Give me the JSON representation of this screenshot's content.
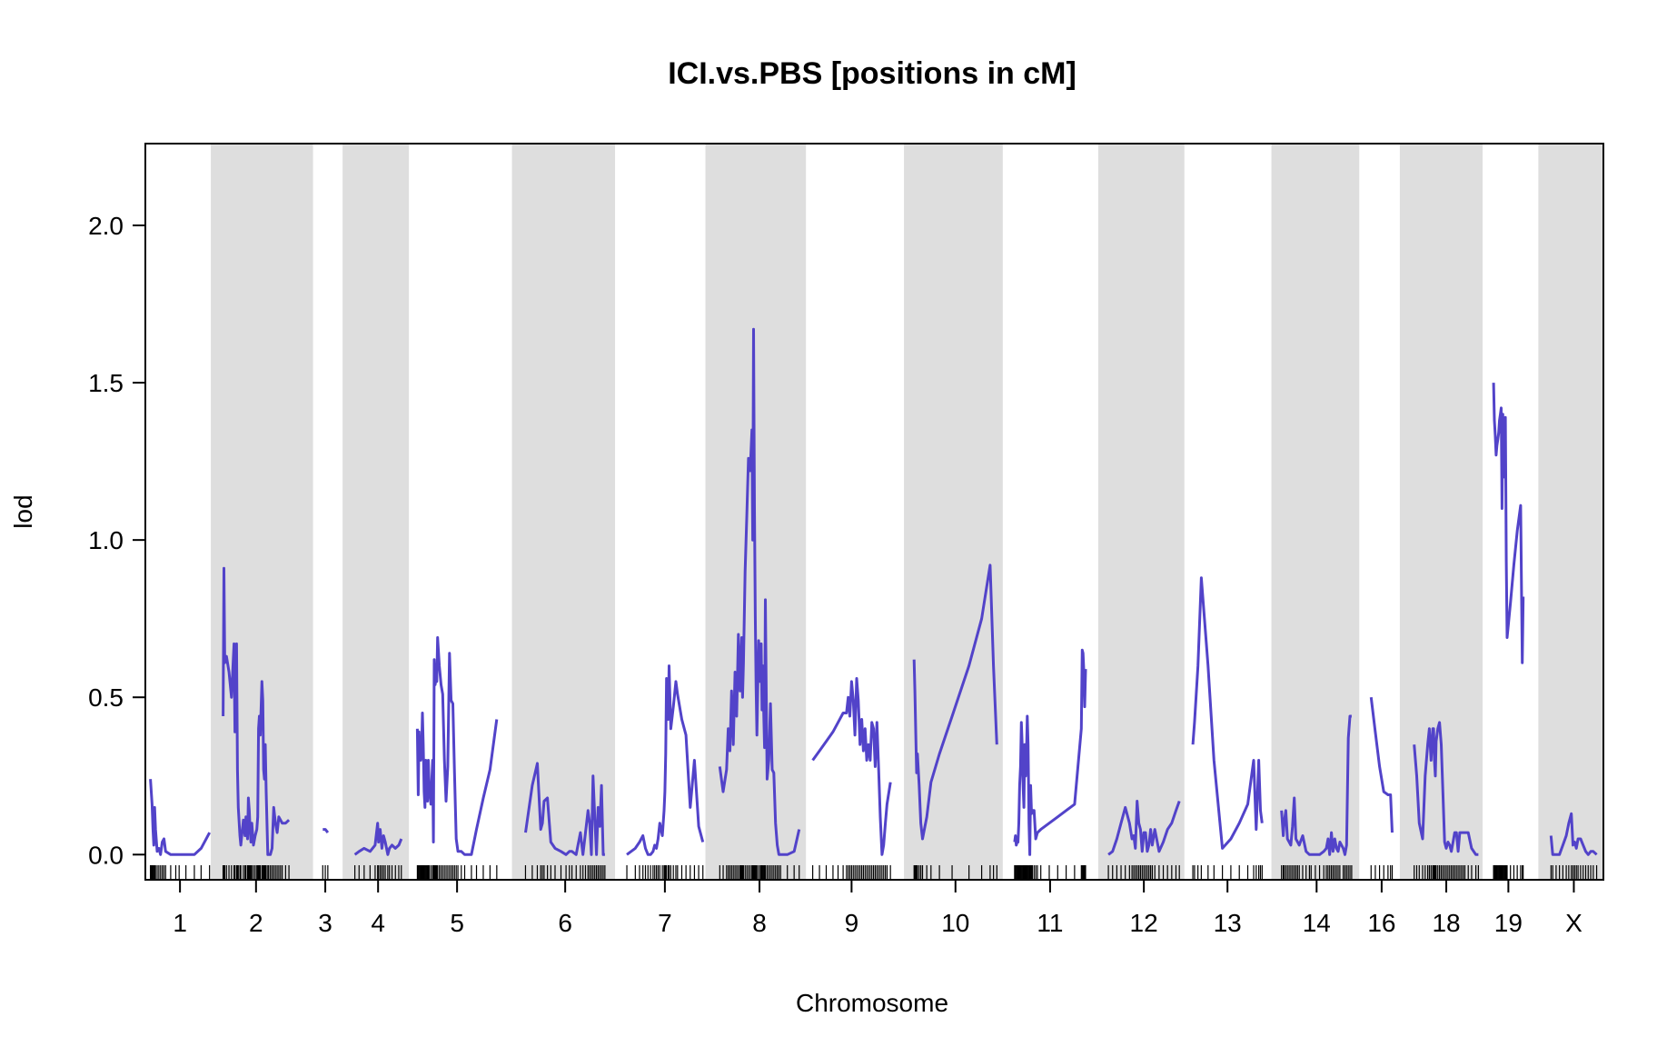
{
  "chart_data": {
    "type": "line",
    "title": "ICI.vs.PBS [positions in cM]",
    "xlabel": "Chromosome",
    "ylabel": "lod",
    "ylim": [
      -0.08,
      2.26
    ],
    "y_ticks": [
      "0.0",
      "0.5",
      "1.0",
      "1.5",
      "2.0"
    ],
    "y_tick_values": [
      0,
      0.5,
      1,
      1.5,
      2
    ],
    "line_color": "#5243c9",
    "band_color": "#dedede",
    "rug_color": "#000000",
    "grid": false,
    "legend": "none",
    "chromosomes": [
      {
        "name": "1",
        "start": 0,
        "end": 77.5,
        "shaded": false,
        "x": [
          6,
          7,
          8,
          9,
          10,
          11,
          12,
          14,
          16,
          18,
          20,
          22,
          24,
          30,
          36,
          40,
          48,
          58,
          66,
          76
        ],
        "lod": [
          0.24,
          0.2,
          0.16,
          0.08,
          0.03,
          0.15,
          0.08,
          0.01,
          0.02,
          0.0,
          0.04,
          0.05,
          0.01,
          0.0,
          0.0,
          0.0,
          0.0,
          0.0,
          0.02,
          0.07
        ]
      },
      {
        "name": "2",
        "start": 77.5,
        "end": 198.5,
        "shaded": true,
        "x": [
          92,
          93,
          94,
          96,
          99,
          102,
          105,
          106,
          108,
          109,
          110,
          112,
          113,
          116,
          118,
          119,
          121,
          122,
          123,
          124,
          125,
          126,
          128,
          130,
          132,
          133,
          134,
          135,
          136,
          138,
          139,
          140,
          141,
          142,
          143,
          145,
          146,
          148,
          150,
          152,
          154,
          156,
          158,
          160,
          162,
          166,
          170
        ],
        "lod": [
          0.44,
          0.91,
          0.61,
          0.63,
          0.58,
          0.5,
          0.67,
          0.39,
          0.67,
          0.27,
          0.15,
          0.06,
          0.03,
          0.11,
          0.06,
          0.12,
          0.05,
          0.18,
          0.14,
          0.08,
          0.04,
          0.1,
          0.03,
          0.06,
          0.08,
          0.12,
          0.4,
          0.44,
          0.38,
          0.55,
          0.49,
          0.27,
          0.24,
          0.35,
          0.2,
          0.0,
          0.0,
          0.0,
          0.02,
          0.15,
          0.1,
          0.07,
          0.12,
          0.11,
          0.1,
          0.1,
          0.11
        ]
      },
      {
        "name": "3",
        "start": 198.5,
        "end": 233.5,
        "shaded": false,
        "x": [
          210,
          213,
          216
        ],
        "lod": [
          0.08,
          0.08,
          0.07
        ]
      },
      {
        "name": "4",
        "start": 233.5,
        "end": 312.0,
        "shaded": true,
        "x": [
          248,
          253,
          259,
          266,
          272,
          275,
          276,
          278,
          280,
          282,
          284,
          287,
          289,
          292,
          296,
          300,
          303
        ],
        "lod": [
          0.0,
          0.01,
          0.02,
          0.01,
          0.03,
          0.1,
          0.04,
          0.08,
          0.02,
          0.06,
          0.04,
          0.0,
          0.02,
          0.03,
          0.02,
          0.03,
          0.05
        ]
      },
      {
        "name": "5",
        "start": 312.0,
        "end": 434.0,
        "shaded": false,
        "x": [
          322,
          323,
          324,
          325,
          326,
          327,
          328,
          329,
          330,
          331,
          332,
          333,
          334,
          335,
          336,
          338,
          340,
          341,
          342,
          343,
          344,
          345,
          346,
          348,
          350,
          352,
          354,
          356,
          358,
          360,
          362,
          364,
          366,
          368,
          370,
          374,
          378,
          386,
          392,
          400,
          408,
          416
        ],
        "lod": [
          0.4,
          0.19,
          0.39,
          0.31,
          0.3,
          0.33,
          0.45,
          0.35,
          0.2,
          0.15,
          0.3,
          0.25,
          0.17,
          0.3,
          0.22,
          0.16,
          0.3,
          0.04,
          0.62,
          0.54,
          0.56,
          0.55,
          0.69,
          0.6,
          0.54,
          0.51,
          0.3,
          0.17,
          0.28,
          0.64,
          0.49,
          0.48,
          0.26,
          0.05,
          0.01,
          0.01,
          0.0,
          0.0,
          0.08,
          0.18,
          0.27,
          0.43
        ]
      },
      {
        "name": "6",
        "start": 434.0,
        "end": 556.0,
        "shaded": true,
        "x": [
          450,
          458,
          464,
          468,
          470,
          472,
          476,
          480,
          485,
          492,
          498,
          502,
          505,
          510,
          515,
          518,
          521,
          524,
          526,
          528,
          530,
          532,
          534,
          536,
          538,
          540,
          542,
          544
        ],
        "lod": [
          0.07,
          0.22,
          0.29,
          0.08,
          0.1,
          0.17,
          0.18,
          0.04,
          0.02,
          0.01,
          0.0,
          0.01,
          0.01,
          0.0,
          0.07,
          0.0,
          0.07,
          0.14,
          0.1,
          0.0,
          0.25,
          0.12,
          0.0,
          0.15,
          0.09,
          0.22,
          0.0,
          0.0
        ]
      },
      {
        "name": "7",
        "start": 556.0,
        "end": 663.0,
        "shaded": false,
        "x": [
          570,
          580,
          585,
          589,
          592,
          595,
          598,
          601,
          603,
          605,
          607,
          609,
          612,
          614,
          615,
          616,
          617,
          619,
          620,
          622,
          625,
          628,
          630,
          635,
          640,
          645,
          650,
          655,
          660
        ],
        "lod": [
          0.0,
          0.02,
          0.04,
          0.06,
          0.02,
          0.0,
          0.0,
          0.01,
          0.03,
          0.02,
          0.05,
          0.1,
          0.06,
          0.14,
          0.2,
          0.32,
          0.56,
          0.43,
          0.6,
          0.4,
          0.47,
          0.55,
          0.51,
          0.43,
          0.38,
          0.15,
          0.3,
          0.09,
          0.04
        ]
      },
      {
        "name": "8",
        "start": 663.0,
        "end": 782.0,
        "shaded": true,
        "x": [
          680,
          684,
          688,
          690,
          692,
          694,
          696,
          698,
          700,
          702,
          704,
          705,
          706,
          707,
          708,
          710,
          712,
          714,
          716,
          718,
          719,
          720,
          721,
          722,
          723,
          724,
          726,
          728,
          729,
          730,
          731,
          732,
          733,
          734,
          736,
          738,
          740,
          742,
          744,
          746,
          748,
          750,
          752,
          760,
          768,
          774
        ],
        "lod": [
          0.28,
          0.2,
          0.27,
          0.4,
          0.33,
          0.52,
          0.35,
          0.58,
          0.44,
          0.7,
          0.52,
          0.61,
          0.69,
          0.5,
          0.61,
          0.9,
          1.08,
          1.26,
          1.22,
          1.35,
          1.0,
          1.67,
          1.1,
          0.76,
          0.53,
          0.38,
          0.68,
          0.55,
          0.67,
          0.46,
          0.6,
          0.45,
          0.34,
          0.81,
          0.24,
          0.3,
          0.48,
          0.27,
          0.26,
          0.1,
          0.03,
          0.0,
          0.0,
          0.0,
          0.01,
          0.08
        ]
      },
      {
        "name": "9",
        "start": 782.0,
        "end": 898.0,
        "shaded": false,
        "x": [
          790,
          798,
          806,
          814,
          820,
          826,
          830,
          832,
          834,
          836,
          838,
          840,
          842,
          844,
          846,
          848,
          850,
          852,
          854,
          856,
          858,
          860,
          862,
          864,
          866,
          868,
          870,
          872,
          874,
          876,
          878,
          882
        ],
        "lod": [
          0.3,
          0.33,
          0.36,
          0.39,
          0.42,
          0.45,
          0.45,
          0.5,
          0.44,
          0.55,
          0.49,
          0.38,
          0.56,
          0.49,
          0.35,
          0.43,
          0.33,
          0.4,
          0.3,
          0.35,
          0.3,
          0.42,
          0.4,
          0.28,
          0.42,
          0.28,
          0.12,
          0.0,
          0.03,
          0.1,
          0.16,
          0.23
        ]
      },
      {
        "name": "10",
        "start": 898.0,
        "end": 1015.0,
        "shaded": true,
        "x": [
          910,
          911,
          912,
          913,
          914,
          916,
          918,
          920,
          925,
          930,
          940,
          955,
          975,
          990,
          1000,
          1004,
          1008
        ],
        "lod": [
          0.62,
          0.52,
          0.38,
          0.26,
          0.32,
          0.22,
          0.1,
          0.05,
          0.12,
          0.23,
          0.32,
          0.44,
          0.6,
          0.75,
          0.92,
          0.6,
          0.35
        ]
      },
      {
        "name": "11",
        "start": 1015.0,
        "end": 1128.0,
        "shaded": false,
        "x": [
          1029,
          1030,
          1031,
          1032,
          1033,
          1034,
          1035,
          1036,
          1037,
          1038,
          1039,
          1040,
          1041,
          1042,
          1043,
          1044,
          1045,
          1046,
          1047,
          1048,
          1049,
          1050,
          1052,
          1054,
          1056,
          1060,
          1070,
          1080,
          1090,
          1100,
          1108,
          1109,
          1110,
          1111,
          1112,
          1113
        ],
        "lod": [
          0.04,
          0.06,
          0.03,
          0.04,
          0.04,
          0.1,
          0.22,
          0.28,
          0.42,
          0.35,
          0.22,
          0.15,
          0.35,
          0.25,
          0.32,
          0.44,
          0.35,
          0.1,
          0.0,
          0.22,
          0.13,
          0.14,
          0.14,
          0.05,
          0.07,
          0.08,
          0.1,
          0.12,
          0.14,
          0.16,
          0.4,
          0.65,
          0.64,
          0.58,
          0.47,
          0.59
        ]
      },
      {
        "name": "12",
        "start": 1128.0,
        "end": 1230.0,
        "shaded": true,
        "x": [
          1140,
          1145,
          1150,
          1155,
          1160,
          1165,
          1168,
          1170,
          1172,
          1174,
          1176,
          1178,
          1180,
          1182,
          1184,
          1186,
          1188,
          1190,
          1192,
          1195,
          1200,
          1205,
          1210,
          1215,
          1220,
          1224
        ],
        "lod": [
          0.0,
          0.01,
          0.05,
          0.1,
          0.15,
          0.1,
          0.05,
          0.06,
          0.02,
          0.17,
          0.1,
          0.08,
          0.01,
          0.07,
          0.07,
          0.01,
          0.03,
          0.08,
          0.03,
          0.08,
          0.01,
          0.04,
          0.08,
          0.1,
          0.14,
          0.17
        ]
      },
      {
        "name": "13",
        "start": 1230.0,
        "end": 1333.0,
        "shaded": false,
        "x": [
          1240,
          1242,
          1246,
          1250,
          1258,
          1265,
          1275,
          1285,
          1295,
          1305,
          1312,
          1315,
          1318,
          1320,
          1322
        ],
        "lod": [
          0.35,
          0.42,
          0.6,
          0.88,
          0.6,
          0.3,
          0.02,
          0.05,
          0.1,
          0.16,
          0.3,
          0.08,
          0.3,
          0.14,
          0.1
        ]
      },
      {
        "name": "14",
        "start": 1333.0,
        "end": 1437.0,
        "shaded": true,
        "x": [
          1345,
          1347,
          1348,
          1350,
          1352,
          1354,
          1356,
          1358,
          1360,
          1362,
          1364,
          1366,
          1370,
          1374,
          1378,
          1380,
          1385,
          1390,
          1395,
          1398,
          1400,
          1402,
          1404,
          1406,
          1408,
          1410,
          1412,
          1414,
          1418,
          1420,
          1422,
          1424,
          1426,
          1428
        ],
        "lod": [
          0.14,
          0.06,
          0.1,
          0.14,
          0.05,
          0.04,
          0.03,
          0.09,
          0.18,
          0.05,
          0.04,
          0.03,
          0.06,
          0.01,
          0.0,
          0.0,
          0.0,
          0.0,
          0.01,
          0.02,
          0.05,
          0.0,
          0.07,
          0.01,
          0.05,
          0.02,
          0.01,
          0.04,
          0.02,
          0.0,
          0.03,
          0.37,
          0.44,
          0.44
        ]
      },
      {
        "name": "16",
        "start": 1437.0,
        "end": 1485.0,
        "shaded": false,
        "x": [
          1451,
          1456,
          1461,
          1466,
          1471,
          1474,
          1476
        ],
        "lod": [
          0.5,
          0.39,
          0.28,
          0.2,
          0.19,
          0.19,
          0.07
        ]
      },
      {
        "name": "18",
        "start": 1485.0,
        "end": 1583.0,
        "shaded": true,
        "x": [
          1502,
          1505,
          1508,
          1512,
          1515,
          1518,
          1520,
          1522,
          1524,
          1525,
          1526,
          1527,
          1528,
          1530,
          1532,
          1534,
          1536,
          1538,
          1540,
          1542,
          1544,
          1546,
          1548,
          1550,
          1552,
          1554,
          1556,
          1558,
          1560,
          1562,
          1566,
          1570,
          1575,
          1578
        ],
        "lod": [
          0.35,
          0.25,
          0.1,
          0.05,
          0.25,
          0.35,
          0.4,
          0.3,
          0.4,
          0.4,
          0.3,
          0.25,
          0.36,
          0.4,
          0.42,
          0.35,
          0.2,
          0.04,
          0.02,
          0.04,
          0.03,
          0.01,
          0.04,
          0.07,
          0.07,
          0.01,
          0.07,
          0.07,
          0.07,
          0.07,
          0.07,
          0.02,
          0.0,
          0.0
        ]
      },
      {
        "name": "19",
        "start": 1583.0,
        "end": 1649.0,
        "shaded": false,
        "x": [
          1596,
          1597,
          1598,
          1599,
          1600,
          1601,
          1602,
          1603,
          1604,
          1605,
          1606,
          1607,
          1608,
          1609,
          1610,
          1611,
          1612,
          1616,
          1620,
          1624,
          1628,
          1630,
          1631
        ],
        "lod": [
          1.5,
          1.38,
          1.33,
          1.27,
          1.3,
          1.32,
          1.34,
          1.38,
          1.4,
          1.42,
          1.1,
          1.4,
          1.2,
          1.28,
          1.39,
          0.93,
          0.69,
          0.8,
          0.92,
          1.03,
          1.11,
          0.61,
          0.82
        ]
      },
      {
        "name": "X",
        "start": 1649.0,
        "end": 1726.0,
        "shaded": true,
        "x": [
          1664,
          1666,
          1670,
          1674,
          1678,
          1682,
          1685,
          1688,
          1690,
          1692,
          1694,
          1696,
          1699,
          1702,
          1705,
          1708,
          1711,
          1714,
          1718
        ],
        "lod": [
          0.06,
          0.0,
          0.0,
          0.0,
          0.03,
          0.06,
          0.1,
          0.13,
          0.03,
          0.04,
          0.02,
          0.05,
          0.05,
          0.03,
          0.01,
          0.0,
          0.01,
          0.01,
          0.0
        ]
      }
    ]
  }
}
